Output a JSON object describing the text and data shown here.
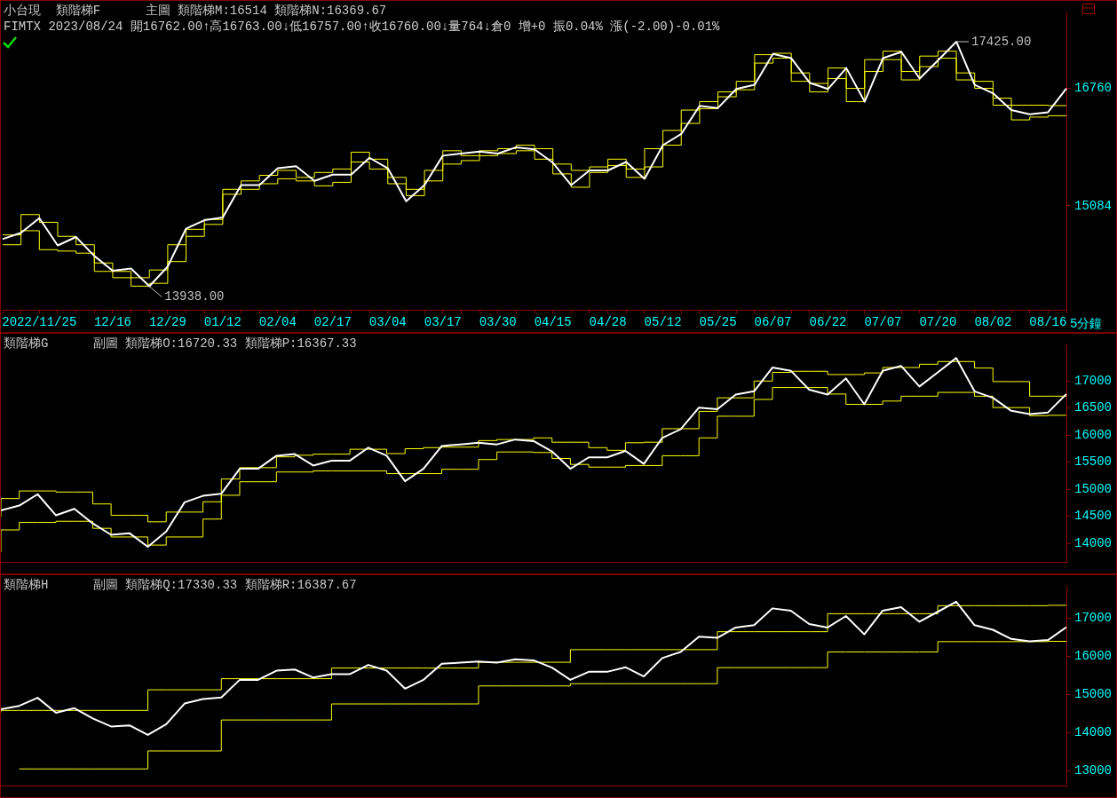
{
  "chart_data": [
    {
      "type": "line",
      "title": "小台現  類階梯F      主圖 類階梯M:16514 類階梯N:16369.67",
      "subtitle": "FIMTX 2023/08/24 開16762.00↑高16763.00↓低16757.00↑收16760.00↓量764↓倉0 增+0 振0.04% 漲(-2.00)-0.01%",
      "categories": [
        null,
        null,
        "2022/11/25",
        null,
        null,
        null,
        "12/16",
        null,
        null,
        "12/29",
        null,
        null,
        "01/12",
        null,
        null,
        "02/04",
        null,
        null,
        "02/17",
        null,
        null,
        "03/04",
        null,
        null,
        "03/17",
        null,
        null,
        "03/30",
        null,
        null,
        "04/15",
        null,
        null,
        "04/28",
        null,
        null,
        "05/12",
        null,
        null,
        "05/25",
        null,
        null,
        "06/07",
        null,
        null,
        "06/22",
        null,
        null,
        "07/07",
        null,
        null,
        "07/20",
        null,
        null,
        "08/02",
        null,
        null,
        "08/16",
        null
      ],
      "series": [
        {
          "type": "line",
          "color": "#ffffff",
          "values": [
            14610,
            14700,
            14910,
            14520,
            14640,
            14370,
            14160,
            14190,
            13938,
            14220,
            14760,
            14880,
            14920,
            15380,
            15380,
            15620,
            15650,
            15440,
            15530,
            15530,
            15770,
            15620,
            15150,
            15380,
            15800,
            15830,
            15860,
            15830,
            15920,
            15890,
            15700,
            15380,
            15590,
            15590,
            15710,
            15470,
            15950,
            16110,
            16510,
            16480,
            16750,
            16810,
            17250,
            17190,
            16840,
            16750,
            17050,
            16570,
            17190,
            17280,
            16900,
            17160,
            17425,
            16810,
            16690,
            16450,
            16390,
            16420,
            16760
          ]
        },
        {
          "type": "step",
          "color": "#ffff00",
          "values": [
            14670,
            14670,
            14960,
            14850,
            14650,
            14530,
            14270,
            14150,
            14060,
            14170,
            14530,
            14750,
            14890,
            15320,
            15440,
            15520,
            15590,
            15490,
            15560,
            15610,
            15850,
            15750,
            15490,
            15320,
            15590,
            15870,
            15800,
            15870,
            15900,
            15950,
            15900,
            15680,
            15590,
            15640,
            15750,
            15610,
            15900,
            16160,
            16450,
            16570,
            16710,
            16860,
            17240,
            17260,
            16980,
            16830,
            17050,
            16760,
            17170,
            17290,
            17000,
            17220,
            17290,
            16980,
            16860,
            16620,
            16520,
            16520,
            16514
          ]
        },
        {
          "type": "step",
          "color": "#ffff00",
          "values": [
            14530,
            14530,
            14730,
            14460,
            14440,
            14410,
            14150,
            14060,
            13940,
            13980,
            14290,
            14650,
            14820,
            15250,
            15320,
            15400,
            15470,
            15440,
            15370,
            15420,
            15710,
            15610,
            15400,
            15230,
            15440,
            15680,
            15730,
            15800,
            15830,
            15870,
            15750,
            15540,
            15350,
            15560,
            15660,
            15490,
            15640,
            15950,
            16260,
            16470,
            16640,
            16740,
            17120,
            17190,
            16860,
            16710,
            16900,
            16570,
            17000,
            17170,
            16880,
            17070,
            17190,
            16880,
            16760,
            16520,
            16310,
            16350,
            16369.67
          ]
        }
      ],
      "ylim": [
        13600,
        17850
      ],
      "yticks": [
        15084,
        16760
      ],
      "annotations": [
        "5分鐘",
        "17425.00",
        "13938.00"
      ]
    },
    {
      "type": "line",
      "title": "類階梯G      副圖 類階梯O:16720.33 類階梯P:16367.33",
      "categories": [
        null,
        null,
        null,
        null,
        null,
        null,
        null,
        null,
        null,
        null,
        null,
        null,
        null,
        null,
        null,
        null,
        null,
        null,
        null,
        null,
        null,
        null,
        null,
        null,
        null,
        null,
        null,
        null,
        null,
        null,
        null,
        null,
        null,
        null,
        null,
        null,
        null,
        null,
        null,
        null,
        null,
        null,
        null,
        null,
        null,
        null,
        null,
        null,
        null,
        null,
        null,
        null,
        null,
        null,
        null,
        null,
        null,
        null,
        null
      ],
      "series": [
        {
          "type": "line",
          "color": "#ffffff",
          "values": [
            14610,
            14700,
            14910,
            14520,
            14640,
            14370,
            14160,
            14190,
            13938,
            14220,
            14760,
            14880,
            14920,
            15380,
            15380,
            15620,
            15650,
            15440,
            15530,
            15530,
            15770,
            15620,
            15150,
            15380,
            15800,
            15830,
            15860,
            15830,
            15920,
            15890,
            15700,
            15380,
            15590,
            15590,
            15710,
            15470,
            15950,
            16110,
            16510,
            16480,
            16750,
            16810,
            17250,
            17190,
            16840,
            16750,
            17050,
            16570,
            17190,
            17280,
            16900,
            17160,
            17425,
            16810,
            16690,
            16450,
            16390,
            16420,
            16760
          ]
        },
        {
          "type": "step",
          "color": "#ffff00",
          "values": [
            14490,
            14830,
            14970,
            14970,
            14950,
            14950,
            14730,
            14520,
            14520,
            14400,
            14580,
            14580,
            14770,
            15190,
            15400,
            15400,
            15600,
            15630,
            15650,
            15650,
            15740,
            15740,
            15660,
            15750,
            15770,
            15780,
            15780,
            15900,
            15920,
            15920,
            15950,
            15870,
            15870,
            15770,
            15720,
            15860,
            15870,
            16120,
            16120,
            16440,
            16690,
            16690,
            17000,
            17160,
            17180,
            17180,
            17120,
            17120,
            17150,
            17250,
            17250,
            17310,
            17360,
            17360,
            17240,
            16990,
            16990,
            16720,
            16720.33
          ]
        },
        {
          "type": "step",
          "color": "#ffff00",
          "values": [
            13840,
            14250,
            14390,
            14390,
            14410,
            14410,
            14280,
            14120,
            14120,
            13970,
            14120,
            14120,
            14450,
            14890,
            15140,
            15140,
            15320,
            15320,
            15340,
            15340,
            15340,
            15340,
            15290,
            15290,
            15290,
            15370,
            15370,
            15550,
            15690,
            15690,
            15680,
            15570,
            15460,
            15410,
            15410,
            15440,
            15440,
            15620,
            15620,
            15950,
            16350,
            16350,
            16660,
            16880,
            16880,
            16880,
            16760,
            16570,
            16570,
            16630,
            16720,
            16720,
            16790,
            16790,
            16720,
            16510,
            16510,
            16360,
            16367.33
          ]
        }
      ],
      "ylim": [
        13650,
        17670
      ],
      "yticks": [
        14000,
        14500,
        15000,
        15500,
        16000,
        16500,
        17000
      ],
      "tick_labels": "y"
    },
    {
      "type": "line",
      "title": "類階梯H      副圖 類階梯Q:17330.33 類階梯R:16387.67",
      "categories": [
        null,
        null,
        null,
        null,
        null,
        null,
        null,
        null,
        null,
        null,
        null,
        null,
        null,
        null,
        null,
        null,
        null,
        null,
        null,
        null,
        null,
        null,
        null,
        null,
        null,
        null,
        null,
        null,
        null,
        null,
        null,
        null,
        null,
        null,
        null,
        null,
        null,
        null,
        null,
        null,
        null,
        null,
        null,
        null,
        null,
        null,
        null,
        null,
        null,
        null,
        null,
        null,
        null,
        null,
        null,
        null,
        null,
        null,
        null
      ],
      "series": [
        {
          "type": "line",
          "color": "#ffffff",
          "values": [
            14610,
            14700,
            14910,
            14520,
            14640,
            14370,
            14160,
            14190,
            13938,
            14220,
            14760,
            14880,
            14920,
            15380,
            15380,
            15620,
            15650,
            15440,
            15530,
            15530,
            15770,
            15620,
            15150,
            15380,
            15800,
            15830,
            15860,
            15830,
            15920,
            15890,
            15700,
            15380,
            15590,
            15590,
            15710,
            15470,
            15950,
            16110,
            16510,
            16480,
            16750,
            16810,
            17250,
            17190,
            16840,
            16750,
            17050,
            16570,
            17190,
            17280,
            16900,
            17160,
            17425,
            16810,
            16690,
            16450,
            16390,
            16420,
            16760
          ]
        },
        {
          "type": "step",
          "color": "#ffff00",
          "values": [
            14530,
            14580,
            14580,
            14580,
            14580,
            14580,
            14580,
            14580,
            14580,
            15120,
            15120,
            15120,
            15120,
            15410,
            15410,
            15410,
            15410,
            15410,
            15410,
            15690,
            15690,
            15690,
            15690,
            15690,
            15690,
            15690,
            15690,
            15840,
            15840,
            15840,
            15840,
            15840,
            16170,
            16170,
            16170,
            16170,
            16170,
            16170,
            16170,
            16170,
            16640,
            16640,
            16640,
            16640,
            16640,
            16640,
            17110,
            17110,
            17110,
            17110,
            17110,
            17110,
            17320,
            17320,
            17320,
            17320,
            17320,
            17320,
            17330.33
          ]
        },
        {
          "type": "step",
          "color": "#ffff00",
          "values": [
            null,
            13050,
            13050,
            13050,
            13050,
            13050,
            13050,
            13050,
            13050,
            13520,
            13520,
            13520,
            13520,
            14330,
            14330,
            14330,
            14330,
            14330,
            14330,
            14750,
            14750,
            14750,
            14750,
            14750,
            14750,
            14750,
            14750,
            15220,
            15220,
            15220,
            15220,
            15220,
            15280,
            15280,
            15280,
            15280,
            15280,
            15280,
            15280,
            15280,
            15700,
            15700,
            15700,
            15700,
            15700,
            15700,
            16110,
            16110,
            16110,
            16110,
            16110,
            16110,
            16380,
            16380,
            16380,
            16380,
            16380,
            16380,
            16387.67
          ]
        }
      ],
      "ylim": [
        12600,
        17830
      ],
      "yticks": [
        13000,
        14000,
        15000,
        16000,
        17000
      ],
      "tick_labels": "y"
    }
  ]
}
